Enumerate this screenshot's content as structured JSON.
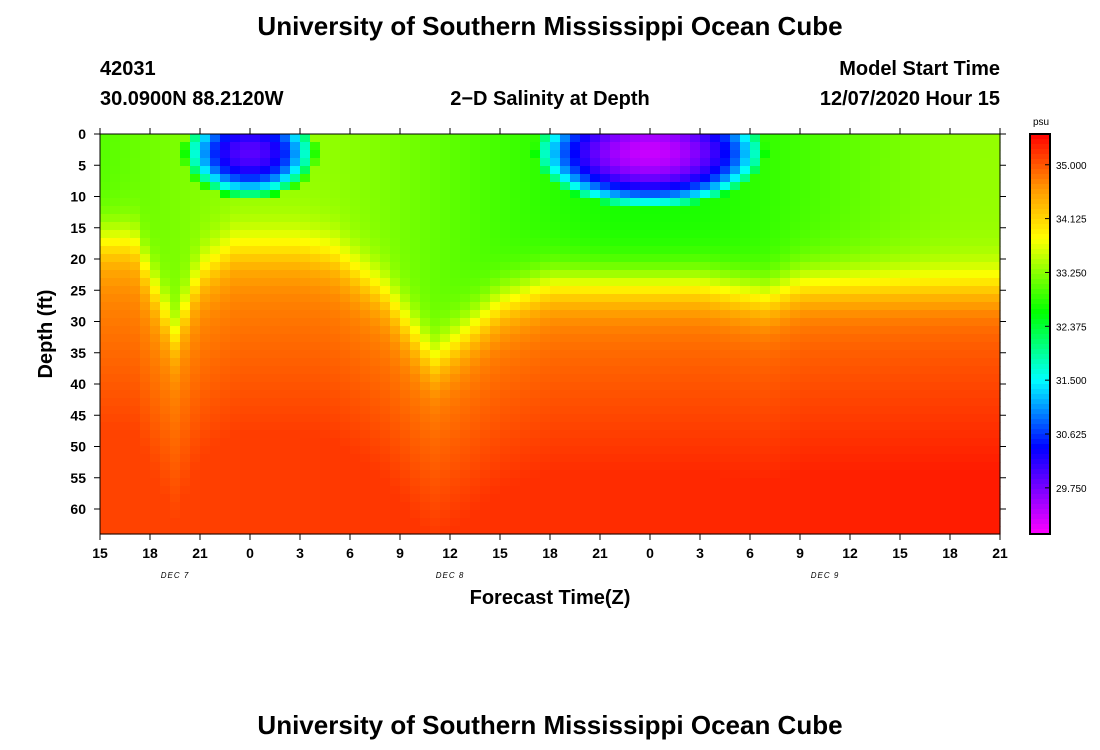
{
  "title_top": "University of Southern Mississippi Ocean Cube",
  "title_bottom": "University of Southern Mississippi Ocean Cube",
  "station_id": "42031",
  "station_coords": "30.0900N 88.2120W",
  "plot_title": "2−D Salinity at Depth",
  "model_start_label": "Model Start Time",
  "model_start_value": "12/07/2020 Hour 15",
  "colorbar": {
    "unit": "psu",
    "min": 29.0,
    "max": 35.5,
    "tick_values": [
      35.0,
      34.125,
      33.25,
      32.375,
      31.5,
      30.625,
      29.75
    ],
    "tick_labels": [
      "35.000",
      "34.125",
      "33.250",
      "32.375",
      "31.500",
      "30.625",
      "29.750"
    ]
  },
  "colors": {
    "magenta": "#ff00ff",
    "blue": "#0000ff",
    "cyan": "#00ffff",
    "green": "#00ff00",
    "yellow": "#ffff00",
    "orange": "#ff9900",
    "red": "#ff0000"
  },
  "chart_data": {
    "type": "heatmap",
    "title": "2−D Salinity at Depth",
    "xlabel": "Forecast Time(Z)",
    "ylabel": "Depth (ft)",
    "value_unit": "psu",
    "x_unit": "hours since 12/07/2020 15Z",
    "xlim": [
      0,
      54
    ],
    "ylim": [
      0,
      64
    ],
    "x_ticks": [
      0,
      3,
      6,
      9,
      12,
      15,
      18,
      21,
      24,
      27,
      30,
      33,
      36,
      39,
      42,
      45,
      48,
      51,
      54
    ],
    "x_tick_labels": [
      "15",
      "18",
      "21",
      "0",
      "3",
      "6",
      "9",
      "12",
      "15",
      "18",
      "21",
      "0",
      "3",
      "6",
      "9",
      "12",
      "15",
      "18",
      "21"
    ],
    "y_ticks": [
      0,
      5,
      10,
      15,
      20,
      25,
      30,
      35,
      40,
      45,
      50,
      55,
      60
    ],
    "y_tick_labels": [
      "0",
      "5",
      "10",
      "15",
      "20",
      "25",
      "30",
      "35",
      "40",
      "45",
      "50",
      "55",
      "60"
    ],
    "date_labels": [
      {
        "x": 4.5,
        "text": "DEC 7"
      },
      {
        "x": 21,
        "text": "DEC 8"
      },
      {
        "x": 43.5,
        "text": "DEC 9"
      }
    ],
    "halocline_depth": {
      "x": [
        0,
        2,
        4.5,
        6,
        8,
        12,
        14,
        17,
        20,
        24,
        27,
        30,
        33,
        36,
        40,
        42,
        45,
        48,
        54
      ],
      "depth": [
        17,
        17,
        32,
        22,
        18,
        18,
        19,
        25,
        36,
        27,
        24,
        24,
        24,
        24,
        26,
        24,
        24,
        24,
        24
      ]
    },
    "fresh_lenses": [
      {
        "x_center": 9,
        "x_halfwidth": 3.2,
        "depth_center": 3,
        "depth_halfwidth": 6,
        "min_psu": 29.9
      },
      {
        "x_center": 33,
        "x_halfwidth": 5.5,
        "depth_center": 3,
        "depth_halfwidth": 7,
        "min_psu": 29.3
      }
    ],
    "notes": "Surface layer (0-20 ft) ~32.5-33.5 psu; deep layer 34.5-35.4 psu, saltiest near bottom at end of period."
  }
}
